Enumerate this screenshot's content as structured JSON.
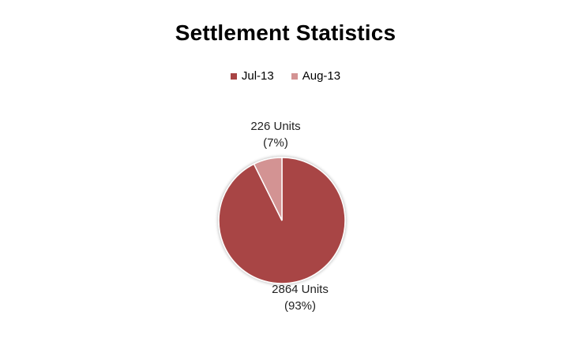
{
  "chart_data": {
    "type": "pie",
    "title": "Settlement Statistics",
    "legend_position": "top",
    "series": [
      {
        "name": "Jul-13",
        "value": 2864,
        "label": "2864 Units",
        "percent_label": "(93%)",
        "color": "#a84444"
      },
      {
        "name": "Aug-13",
        "value": 226,
        "label": "226 Units",
        "percent_label": "(7%)",
        "color": "#d39393"
      }
    ]
  }
}
